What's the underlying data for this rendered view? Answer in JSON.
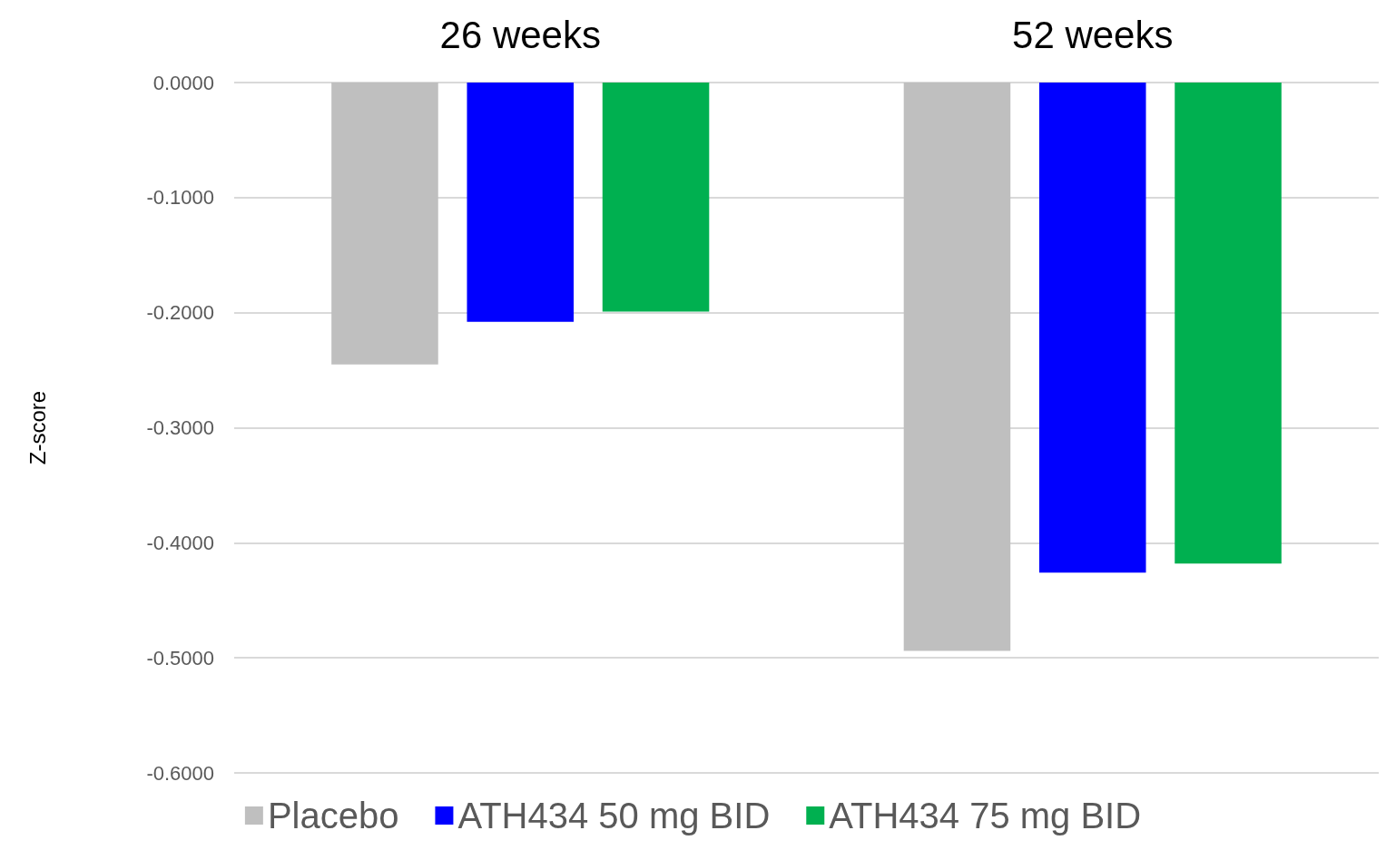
{
  "chart_data": {
    "type": "bar",
    "ylabel": "Z-score",
    "categories": [
      "26 weeks",
      "52 weeks"
    ],
    "series": [
      {
        "name": "Placebo",
        "color": "#bfbfbf",
        "values": [
          -0.245,
          -0.494
        ]
      },
      {
        "name": "ATH434 50 mg BID",
        "color": "#0000ff",
        "values": [
          -0.208,
          -0.426
        ]
      },
      {
        "name": "ATH434 75 mg BID",
        "color": "#00b050",
        "values": [
          -0.199,
          -0.418
        ]
      }
    ],
    "ylim": [
      -0.6,
      0
    ],
    "yticks": [
      {
        "value": -0.6,
        "label": "-0.6000"
      },
      {
        "value": -0.5,
        "label": "-0.5000"
      },
      {
        "value": -0.4,
        "label": "-0.4000"
      },
      {
        "value": -0.3,
        "label": "-0.3000"
      },
      {
        "value": -0.2,
        "label": "-0.2000"
      },
      {
        "value": -0.1,
        "label": "-0.1000"
      },
      {
        "value": 0,
        "label": "0.0000"
      }
    ],
    "grid": "y",
    "legend": "bottom"
  }
}
